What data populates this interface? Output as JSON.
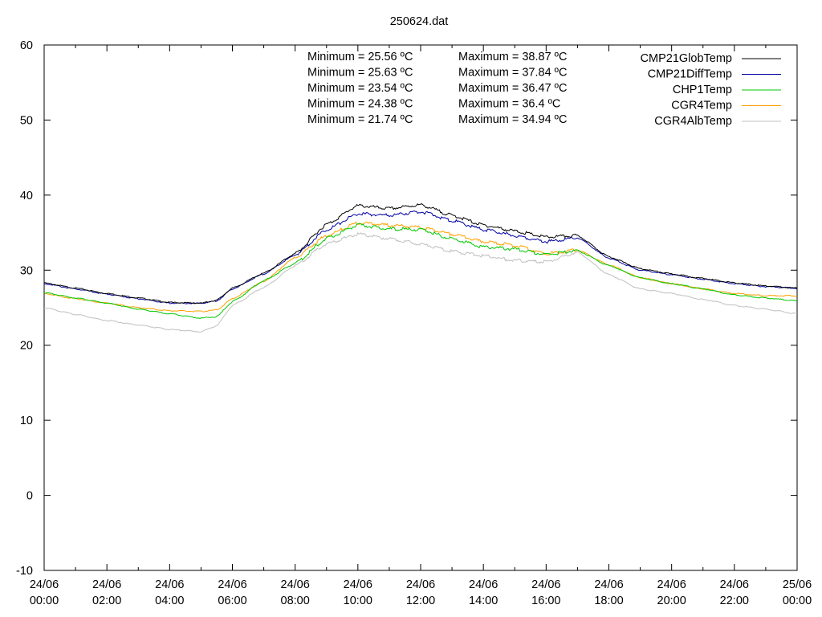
{
  "chart_data": {
    "type": "line",
    "title": "250624.dat",
    "xlabel": "",
    "ylabel": "",
    "ylim": [
      -10,
      60
    ],
    "yticks": [
      -10,
      0,
      10,
      20,
      30,
      40,
      50,
      60
    ],
    "xlim_hours": [
      0,
      24
    ],
    "xticks": [
      {
        "date": "24/06",
        "time": "00:00"
      },
      {
        "date": "24/06",
        "time": "02:00"
      },
      {
        "date": "24/06",
        "time": "04:00"
      },
      {
        "date": "24/06",
        "time": "06:00"
      },
      {
        "date": "24/06",
        "time": "08:00"
      },
      {
        "date": "24/06",
        "time": "10:00"
      },
      {
        "date": "24/06",
        "time": "12:00"
      },
      {
        "date": "24/06",
        "time": "14:00"
      },
      {
        "date": "24/06",
        "time": "16:00"
      },
      {
        "date": "24/06",
        "time": "18:00"
      },
      {
        "date": "24/06",
        "time": "20:00"
      },
      {
        "date": "24/06",
        "time": "22:00"
      },
      {
        "date": "25/06",
        "time": "00:00"
      }
    ],
    "grid": false,
    "legend_position": "top-right",
    "x_hours": [
      0,
      1,
      2,
      3,
      4,
      5,
      5.5,
      6,
      7,
      8,
      9,
      10,
      11,
      12,
      13,
      14,
      15,
      16,
      17,
      18,
      19,
      20,
      21,
      22,
      23,
      24
    ],
    "series": [
      {
        "name": "CMP21GlobTemp",
        "color": "#000000",
        "values": [
          28.3,
          27.6,
          26.9,
          26.3,
          25.7,
          25.6,
          26.0,
          27.6,
          29.6,
          32.2,
          36.1,
          38.6,
          38.2,
          38.7,
          37.3,
          36.0,
          35.2,
          34.4,
          34.6,
          31.8,
          30.2,
          29.5,
          28.9,
          28.3,
          27.9,
          27.6
        ]
      },
      {
        "name": "CMP21DiffTemp",
        "color": "#0000a0",
        "values": [
          28.2,
          27.5,
          26.8,
          26.2,
          25.6,
          25.6,
          25.9,
          27.5,
          29.5,
          32.0,
          35.4,
          37.5,
          37.3,
          37.8,
          36.6,
          35.4,
          34.6,
          33.8,
          34.3,
          31.6,
          30.0,
          29.4,
          28.8,
          28.2,
          27.8,
          27.6
        ]
      },
      {
        "name": "CHP1Temp",
        "color": "#00c800",
        "values": [
          27.0,
          26.3,
          25.6,
          24.8,
          24.2,
          23.6,
          23.8,
          25.8,
          28.6,
          30.9,
          34.2,
          36.0,
          35.5,
          35.4,
          34.2,
          33.1,
          32.8,
          32.1,
          32.6,
          30.6,
          29.0,
          28.2,
          27.5,
          26.7,
          26.3,
          25.9
        ]
      },
      {
        "name": "CGR4Temp",
        "color": "#ffa000",
        "values": [
          26.9,
          26.2,
          25.6,
          25.0,
          24.6,
          24.5,
          24.7,
          26.2,
          28.5,
          31.7,
          34.6,
          36.3,
          36.0,
          35.7,
          34.8,
          33.8,
          33.3,
          32.2,
          32.7,
          30.7,
          29.0,
          28.2,
          27.5,
          26.9,
          26.6,
          26.6
        ]
      },
      {
        "name": "CGR4AlbTemp",
        "color": "#c0c0c0",
        "values": [
          25.0,
          24.1,
          23.3,
          22.7,
          22.1,
          21.8,
          22.6,
          25.3,
          27.7,
          30.6,
          33.5,
          34.8,
          34.2,
          33.5,
          32.5,
          31.9,
          31.3,
          31.1,
          32.4,
          29.4,
          27.5,
          26.9,
          26.1,
          25.3,
          24.8,
          24.2
        ]
      }
    ],
    "annotations": {
      "minimum": [
        "Minimum = 25.56 ºC",
        "Minimum = 25.63 ºC",
        "Minimum = 23.54 ºC",
        "Minimum = 24.38 ºC",
        "Minimum = 21.74 ºC"
      ],
      "maximum": [
        "Maximum = 38.87 ºC",
        "Maximum = 37.84 ºC",
        "Maximum = 36.47 ºC",
        "Maximum = 36.4 ºC",
        "Maximum = 34.94 ºC"
      ]
    }
  }
}
